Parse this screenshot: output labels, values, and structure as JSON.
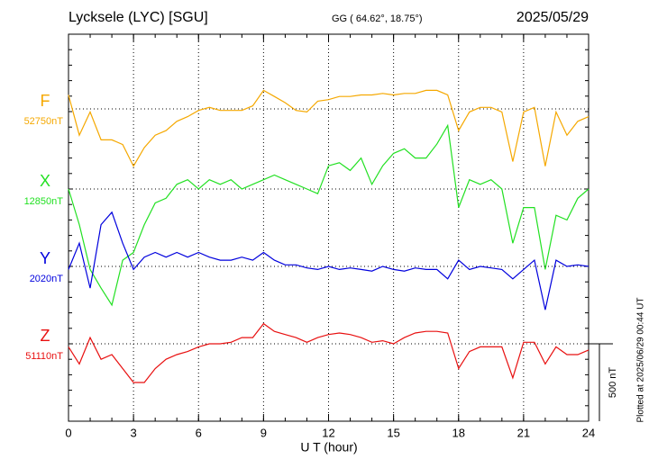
{
  "chart_data": {
    "type": "line",
    "title": "Lycksele (LYC)  [SGU]",
    "subtitle": "GG ( 64.62°,  18.75°)",
    "date": "2025/05/29",
    "x_label": "U T (hour)",
    "footnote": "Plotted at 2025/06/29 00:44 UT",
    "scale_bar": {
      "value": 500,
      "label": "500 nT"
    },
    "xlim": [
      0,
      24
    ],
    "xticks": [
      0,
      3,
      6,
      9,
      12,
      15,
      18,
      21,
      24
    ],
    "grid": true,
    "x": [
      0,
      0.5,
      1,
      1.5,
      2,
      2.5,
      3,
      3.5,
      4,
      4.5,
      5,
      5.5,
      6,
      6.5,
      7,
      7.5,
      8,
      8.5,
      9,
      9.5,
      10,
      10.5,
      11,
      11.5,
      12,
      12.5,
      13,
      13.5,
      14,
      14.5,
      15,
      15.5,
      16,
      16.5,
      17,
      17.5,
      18,
      18.5,
      19,
      19.5,
      20,
      20.5,
      21,
      21.5,
      22,
      22.5,
      23,
      23.5,
      24
    ],
    "series": [
      {
        "name": "F",
        "color": "#f5a800",
        "baseline": {
          "value": 52750,
          "label": "52750nT"
        },
        "values": [
          52840,
          52580,
          52730,
          52550,
          52550,
          52520,
          52380,
          52500,
          52580,
          52610,
          52670,
          52700,
          52740,
          52760,
          52740,
          52740,
          52740,
          52770,
          52870,
          52830,
          52790,
          52740,
          52730,
          52800,
          52810,
          52830,
          52830,
          52840,
          52840,
          52850,
          52840,
          52850,
          52850,
          52870,
          52870,
          52840,
          52610,
          52730,
          52760,
          52760,
          52730,
          52410,
          52730,
          52760,
          52380,
          52730,
          52580,
          52670,
          52700
        ]
      },
      {
        "name": "X",
        "color": "#22e022",
        "baseline": {
          "value": 12850,
          "label": "12850nT"
        },
        "values": [
          12850,
          12620,
          12330,
          12210,
          12100,
          12390,
          12440,
          12620,
          12760,
          12790,
          12880,
          12910,
          12850,
          12910,
          12880,
          12910,
          12850,
          12880,
          12910,
          12940,
          12910,
          12880,
          12850,
          12820,
          13000,
          13020,
          12970,
          13050,
          12880,
          13000,
          13080,
          13110,
          13050,
          13050,
          13140,
          13260,
          12730,
          12910,
          12880,
          12910,
          12850,
          12500,
          12730,
          12730,
          12330,
          12680,
          12650,
          12790,
          12850
        ]
      },
      {
        "name": "Y",
        "color": "#0000dd",
        "baseline": {
          "value": 2020,
          "label": "2020nT"
        },
        "values": [
          2000,
          2170,
          1880,
          2290,
          2370,
          2170,
          2000,
          2080,
          2110,
          2080,
          2110,
          2080,
          2110,
          2080,
          2060,
          2060,
          2080,
          2060,
          2110,
          2060,
          2030,
          2030,
          2010,
          2000,
          2020,
          2000,
          2010,
          2000,
          1990,
          2020,
          2000,
          1990,
          2010,
          2000,
          2000,
          1940,
          2060,
          2000,
          2020,
          2010,
          2000,
          1940,
          2000,
          2060,
          1740,
          2060,
          2020,
          2030,
          2020
        ]
      },
      {
        "name": "Z",
        "color": "#e81010",
        "baseline": {
          "value": 51110,
          "label": "51110nT"
        },
        "values": [
          51090,
          50980,
          51150,
          51010,
          51040,
          50950,
          50860,
          50860,
          50950,
          51010,
          51040,
          51060,
          51090,
          51110,
          51110,
          51120,
          51150,
          51150,
          51240,
          51190,
          51170,
          51150,
          51120,
          51150,
          51170,
          51180,
          51170,
          51150,
          51120,
          51130,
          51110,
          51150,
          51180,
          51190,
          51190,
          51180,
          50950,
          51060,
          51090,
          51090,
          51090,
          50890,
          51120,
          51120,
          50980,
          51090,
          51040,
          51040,
          51070
        ]
      }
    ]
  }
}
